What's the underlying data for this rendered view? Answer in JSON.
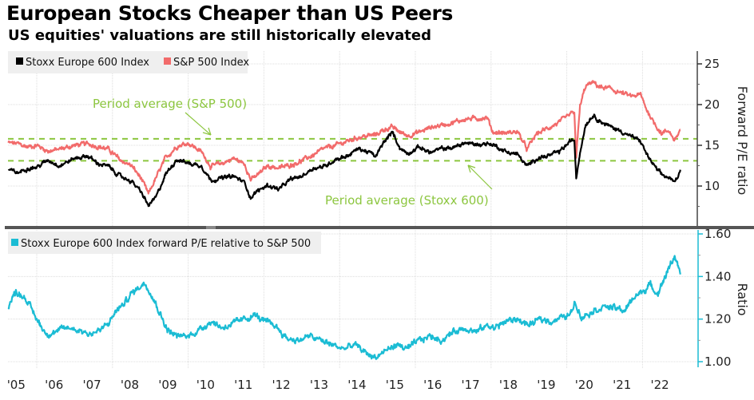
{
  "header": {
    "title": "European Stocks Cheaper than US Peers",
    "subtitle": "US equities' valuations are still historically elevated"
  },
  "colors": {
    "stoxx": "#000000",
    "sp500": "#f26b6b",
    "ratio": "#1bbcd4",
    "average": "#8cc63f",
    "axis_bottom": "#1bbcd4"
  },
  "chart_data": [
    {
      "type": "line",
      "panel": "top",
      "ylabel": "Forward P/E ratio",
      "ylim": [
        4.8,
        26.5
      ],
      "yticks": [
        10,
        15,
        20,
        25
      ],
      "xlim": [
        2005.25,
        2023.1
      ],
      "grid": true,
      "legend": [
        {
          "label": "Stoxx Europe 600 Index",
          "color": "#000000"
        },
        {
          "label": "S&P 500 Index",
          "color": "#f26b6b"
        }
      ],
      "legend_placement": "top-left",
      "series": [
        {
          "name": "Stoxx Europe 600 Index",
          "x": [
            2005.25,
            2005.5,
            2005.75,
            2006.0,
            2006.3,
            2006.6,
            2007.0,
            2007.35,
            2007.6,
            2007.9,
            2008.2,
            2008.5,
            2008.75,
            2008.95,
            2009.15,
            2009.4,
            2009.7,
            2010.0,
            2010.35,
            2010.6,
            2010.9,
            2011.2,
            2011.5,
            2011.65,
            2011.8,
            2012.1,
            2012.4,
            2012.7,
            2013.0,
            2013.3,
            2013.6,
            2013.9,
            2014.2,
            2014.5,
            2014.8,
            2014.95,
            2015.2,
            2015.4,
            2015.6,
            2015.8,
            2016.1,
            2016.4,
            2016.7,
            2017.0,
            2017.3,
            2017.6,
            2017.9,
            2018.05,
            2018.4,
            2018.7,
            2018.95,
            2019.2,
            2019.5,
            2019.8,
            2020.1,
            2020.2,
            2020.25,
            2020.35,
            2020.5,
            2020.7,
            2020.9,
            2021.1,
            2021.4,
            2021.7,
            2021.95,
            2022.1,
            2022.3,
            2022.5,
            2022.7,
            2022.85,
            2023.0
          ],
          "y": [
            12.0,
            11.6,
            12.2,
            12.3,
            13.2,
            12.5,
            13.4,
            13.7,
            12.8,
            12.4,
            11.2,
            10.6,
            9.3,
            7.6,
            8.6,
            11.4,
            13.3,
            12.8,
            12.5,
            10.7,
            11.0,
            11.2,
            10.4,
            8.5,
            9.3,
            10.1,
            9.6,
            10.8,
            11.2,
            12.2,
            12.4,
            13.3,
            13.7,
            14.6,
            14.1,
            13.6,
            15.6,
            16.6,
            14.6,
            14.0,
            14.8,
            14.1,
            14.6,
            14.7,
            15.3,
            15.1,
            15.2,
            15.1,
            14.2,
            13.9,
            12.4,
            13.4,
            13.7,
            14.2,
            15.5,
            15.6,
            11.0,
            14.2,
            17.6,
            18.7,
            17.9,
            17.4,
            16.8,
            16.1,
            15.5,
            14.0,
            12.5,
            11.4,
            11.0,
            10.4,
            12.0
          ]
        },
        {
          "name": "S&P 500 Index",
          "x": [
            2005.25,
            2005.5,
            2005.75,
            2006.0,
            2006.3,
            2006.6,
            2007.0,
            2007.35,
            2007.6,
            2007.9,
            2008.2,
            2008.5,
            2008.75,
            2008.95,
            2009.15,
            2009.4,
            2009.7,
            2010.0,
            2010.35,
            2010.6,
            2010.9,
            2011.2,
            2011.5,
            2011.65,
            2011.8,
            2012.1,
            2012.4,
            2012.7,
            2013.0,
            2013.3,
            2013.6,
            2013.9,
            2014.2,
            2014.5,
            2014.8,
            2014.95,
            2015.2,
            2015.4,
            2015.6,
            2015.8,
            2016.1,
            2016.4,
            2016.7,
            2017.0,
            2017.3,
            2017.6,
            2017.9,
            2018.05,
            2018.4,
            2018.7,
            2018.95,
            2019.2,
            2019.5,
            2019.8,
            2020.1,
            2020.2,
            2020.25,
            2020.35,
            2020.5,
            2020.7,
            2020.9,
            2021.1,
            2021.4,
            2021.7,
            2021.95,
            2022.1,
            2022.3,
            2022.5,
            2022.7,
            2022.85,
            2023.0
          ],
          "y": [
            15.3,
            15.2,
            14.8,
            15.0,
            14.3,
            14.5,
            15.0,
            15.2,
            14.9,
            14.5,
            13.2,
            12.5,
            11.0,
            9.0,
            11.0,
            13.4,
            14.9,
            15.3,
            14.2,
            12.4,
            12.8,
            13.4,
            12.7,
            10.8,
            11.2,
            12.5,
            12.2,
            12.6,
            13.1,
            13.8,
            14.6,
            15.0,
            15.5,
            16.0,
            16.2,
            16.3,
            17.0,
            17.2,
            16.6,
            16.2,
            16.6,
            17.2,
            17.5,
            17.8,
            18.2,
            18.3,
            18.4,
            16.6,
            16.5,
            16.7,
            14.5,
            16.4,
            17.1,
            17.8,
            18.8,
            19.1,
            13.5,
            19.8,
            22.3,
            22.7,
            22.1,
            22.0,
            21.5,
            21.0,
            21.2,
            19.5,
            17.8,
            16.5,
            16.8,
            15.6,
            16.9
          ]
        }
      ],
      "reference_lines": [
        {
          "label": "Period average (S&P 500)",
          "value": 15.8,
          "color": "#8cc63f"
        },
        {
          "label": "Period average (Stoxx 600)",
          "value": 13.1,
          "color": "#8cc63f"
        }
      ]
    },
    {
      "type": "line",
      "panel": "bottom",
      "ylabel": "Ratio",
      "ylim": [
        0.97,
        1.62
      ],
      "yticks": [
        1.0,
        1.2,
        1.4,
        1.6
      ],
      "ytick_labels": [
        "1.00",
        "1.20",
        "1.40",
        "1.60"
      ],
      "xlim": [
        2005.25,
        2023.1
      ],
      "grid": true,
      "legend": [
        {
          "label": "Stoxx Europe 600 Index forward P/E relative to S&P 500",
          "color": "#1bbcd4"
        }
      ],
      "legend_placement": "top-left",
      "series": [
        {
          "name": "Stoxx Europe 600 Index forward P/E relative to S&P 500",
          "x": [
            2005.25,
            2005.45,
            2005.7,
            2006.0,
            2006.25,
            2006.5,
            2006.8,
            2007.1,
            2007.4,
            2007.7,
            2007.9,
            2008.1,
            2008.3,
            2008.5,
            2008.7,
            2008.85,
            2009.0,
            2009.2,
            2009.45,
            2009.7,
            2010.0,
            2010.3,
            2010.6,
            2010.9,
            2011.2,
            2011.5,
            2011.75,
            2012.0,
            2012.3,
            2012.6,
            2012.9,
            2013.2,
            2013.5,
            2013.8,
            2014.1,
            2014.4,
            2014.7,
            2014.95,
            2015.2,
            2015.5,
            2015.8,
            2016.1,
            2016.4,
            2016.7,
            2017.0,
            2017.3,
            2017.6,
            2017.9,
            2018.1,
            2018.4,
            2018.7,
            2019.0,
            2019.3,
            2019.6,
            2019.9,
            2020.1,
            2020.2,
            2020.4,
            2020.7,
            2021.0,
            2021.3,
            2021.55,
            2021.75,
            2022.0,
            2022.2,
            2022.4,
            2022.6,
            2022.85,
            2023.0
          ],
          "y": [
            1.26,
            1.33,
            1.3,
            1.2,
            1.13,
            1.14,
            1.16,
            1.15,
            1.13,
            1.15,
            1.18,
            1.24,
            1.27,
            1.32,
            1.35,
            1.37,
            1.33,
            1.25,
            1.15,
            1.12,
            1.12,
            1.15,
            1.19,
            1.16,
            1.18,
            1.2,
            1.22,
            1.19,
            1.17,
            1.11,
            1.1,
            1.12,
            1.1,
            1.08,
            1.06,
            1.08,
            1.04,
            1.02,
            1.05,
            1.08,
            1.06,
            1.1,
            1.12,
            1.1,
            1.14,
            1.16,
            1.14,
            1.17,
            1.16,
            1.19,
            1.2,
            1.17,
            1.2,
            1.19,
            1.21,
            1.22,
            1.28,
            1.21,
            1.24,
            1.26,
            1.25,
            1.24,
            1.3,
            1.33,
            1.36,
            1.32,
            1.4,
            1.5,
            1.41
          ]
        }
      ]
    }
  ],
  "x_axis": {
    "tick_labels": [
      "'05",
      "'06",
      "'07",
      "'08",
      "'09",
      "'10",
      "'11",
      "'12",
      "'13",
      "'14",
      "'15",
      "'16",
      "'17",
      "'18",
      "'19",
      "'20",
      "'21",
      "'22"
    ]
  }
}
